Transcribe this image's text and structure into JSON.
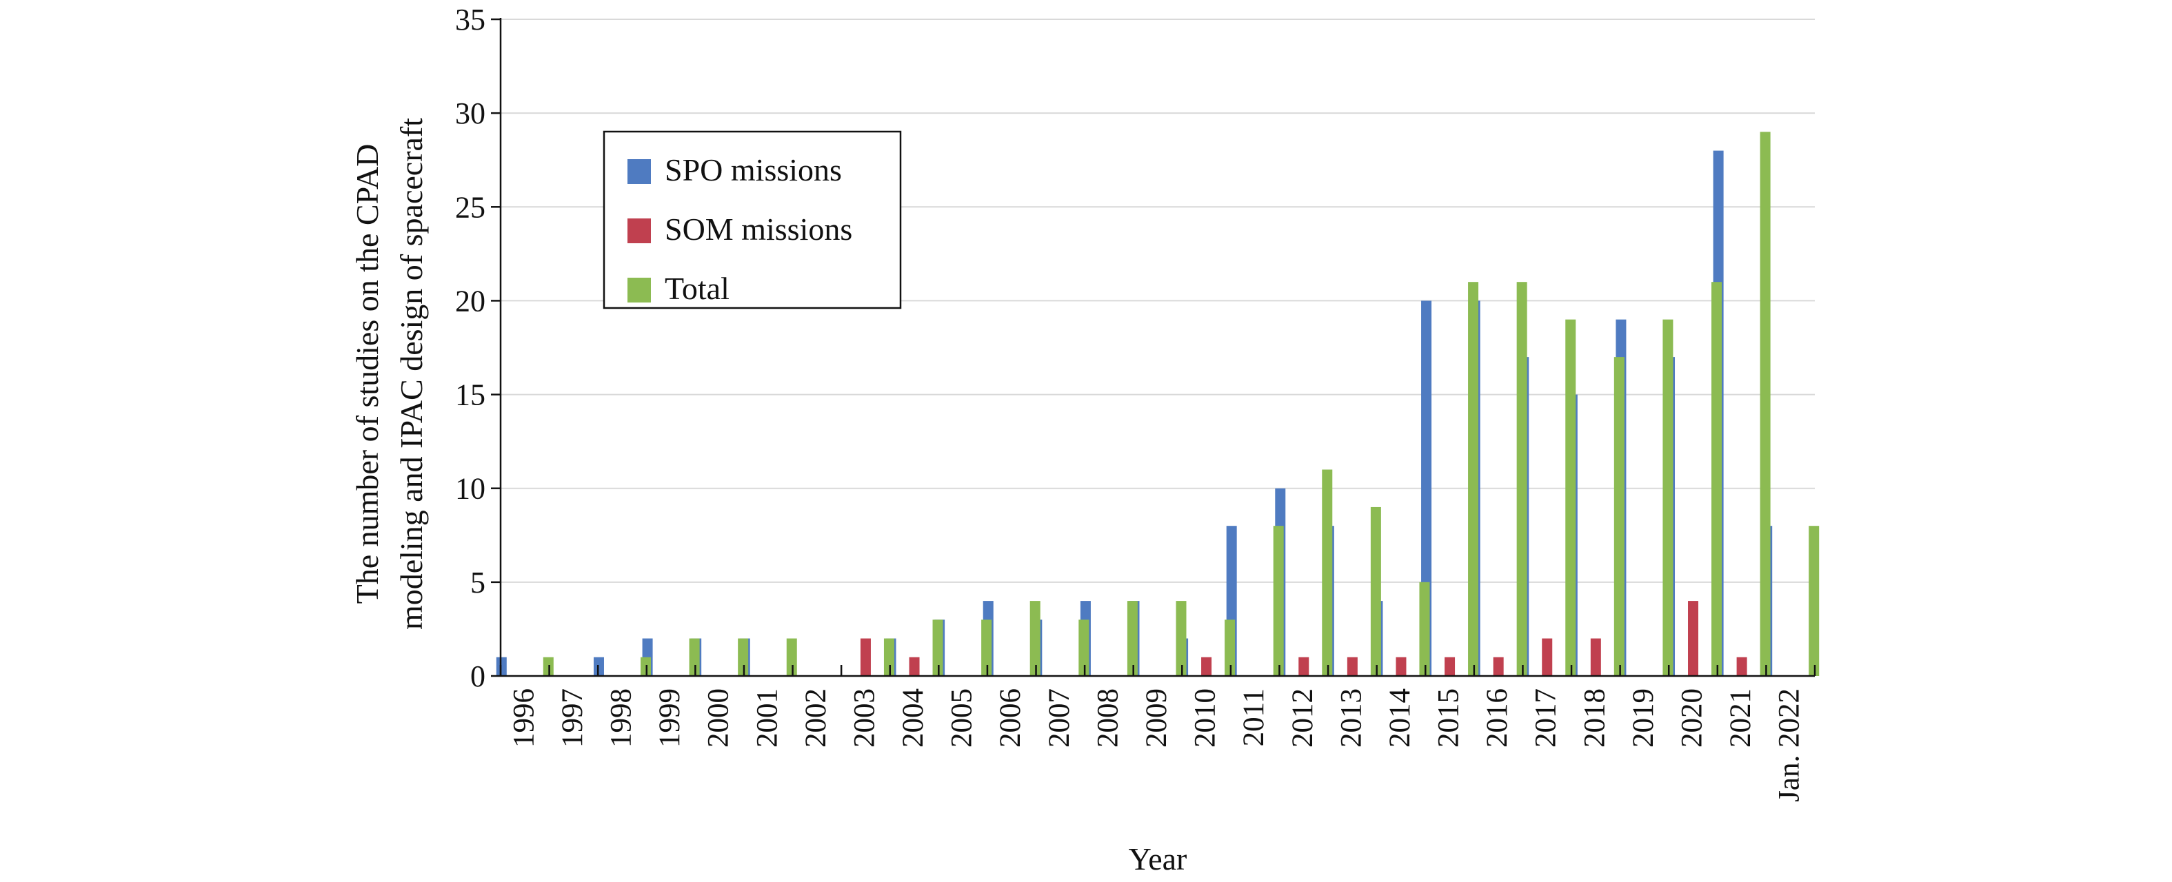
{
  "chart_data": {
    "type": "bar",
    "title": "",
    "xlabel": "Year",
    "ylabel_lines": [
      "The number of studies on the CPAD",
      "modeling and IPAC design of spacecraft"
    ],
    "ylim": [
      0,
      35
    ],
    "yticks": [
      0,
      5,
      10,
      15,
      20,
      25,
      30,
      35
    ],
    "grid": true,
    "legend_position": "top-left",
    "categories": [
      "1996",
      "1997",
      "1998",
      "1999",
      "2000",
      "2001",
      "2002",
      "2003",
      "2004",
      "2005",
      "2006",
      "2007",
      "2008",
      "2009",
      "2010",
      "2011",
      "2012",
      "2013",
      "2014",
      "2015",
      "2016",
      "2017",
      "2018",
      "2019",
      "2020",
      "2021",
      "Jan. 2022"
    ],
    "series": [
      {
        "name": "SPO missions",
        "color": "#4F7BC1",
        "values": [
          1,
          0,
          1,
          2,
          2,
          2,
          0,
          0,
          2,
          3,
          4,
          3,
          4,
          4,
          2,
          8,
          10,
          8,
          4,
          20,
          20,
          17,
          15,
          19,
          17,
          28,
          8
        ]
      },
      {
        "name": "SOM missions",
        "color": "#C0404F",
        "values": [
          0,
          0,
          0,
          0,
          0,
          0,
          0,
          2,
          1,
          0,
          0,
          0,
          0,
          0,
          1,
          0,
          1,
          1,
          1,
          1,
          1,
          2,
          2,
          0,
          4,
          1,
          0
        ]
      },
      {
        "name": "Total",
        "color": "#8CBB52",
        "values": [
          1,
          0,
          1,
          2,
          2,
          2,
          0,
          2,
          3,
          3,
          4,
          3,
          4,
          4,
          3,
          8,
          11,
          9,
          5,
          21,
          21,
          19,
          17,
          19,
          21,
          29,
          8
        ]
      }
    ]
  }
}
